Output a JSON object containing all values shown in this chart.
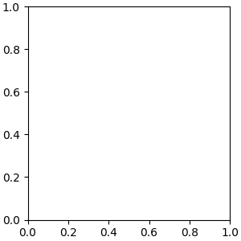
{
  "bg_color": "#ebebeb",
  "bond_color": "#1a1a1a",
  "bond_width": 1.6,
  "atom_colors": {
    "N": "#2060c0",
    "O": "#cc2200",
    "S": "#bbaa00",
    "Cl": "#40aa40",
    "H": "#2080a0",
    "C": "#1a1a1a"
  },
  "font_size_atom": 9.5,
  "font_size_small": 8.0
}
